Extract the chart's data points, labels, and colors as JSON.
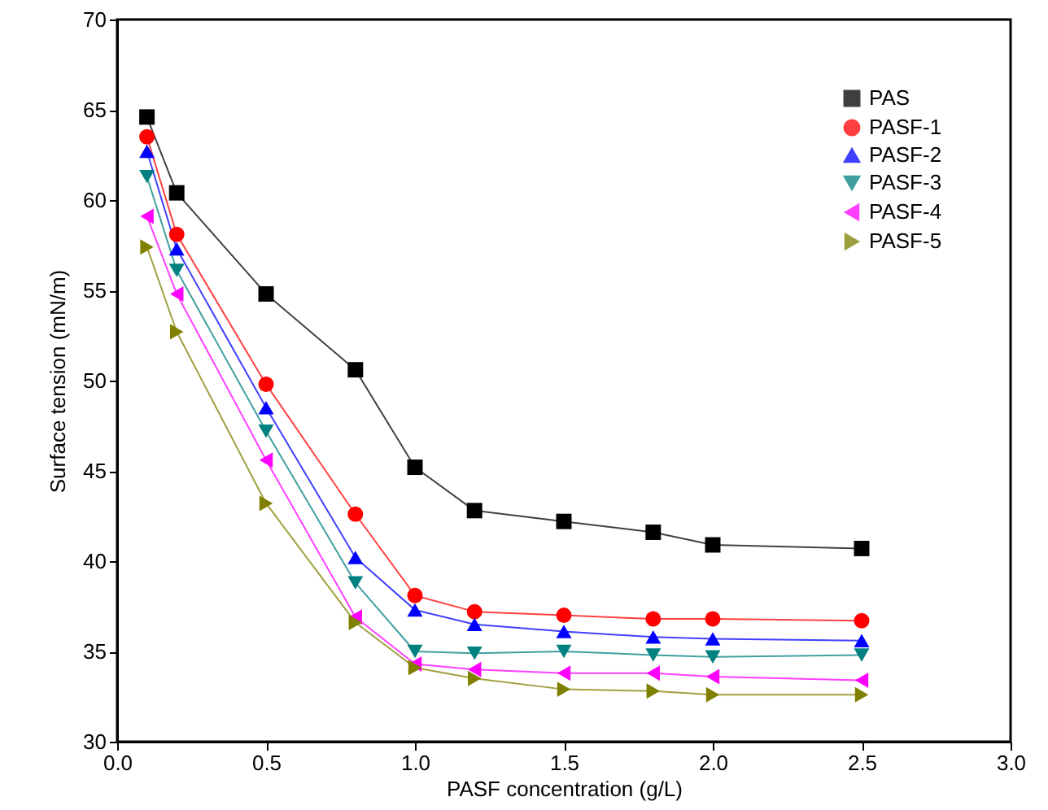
{
  "chart_data": {
    "type": "line",
    "xlabel": "PASF concentration (g/L)",
    "ylabel": "Surface tension (mN/m)",
    "x": [
      0.1,
      0.2,
      0.5,
      0.8,
      1.0,
      1.2,
      1.5,
      1.8,
      2.0,
      2.5
    ],
    "series": [
      {
        "name": "PAS",
        "color": "#000000",
        "marker": "square",
        "values": [
          64.6,
          60.4,
          54.8,
          50.6,
          45.2,
          42.8,
          42.2,
          41.6,
          40.9,
          40.7
        ]
      },
      {
        "name": "PASF-1",
        "color": "#ff0000",
        "marker": "circle",
        "values": [
          63.5,
          58.1,
          49.8,
          42.6,
          38.1,
          37.2,
          37.0,
          36.8,
          36.8,
          36.7
        ]
      },
      {
        "name": "PASF-2",
        "color": "#0000ff",
        "marker": "triangle-up",
        "values": [
          62.7,
          57.3,
          48.5,
          40.2,
          37.3,
          36.5,
          36.1,
          35.8,
          35.7,
          35.6
        ]
      },
      {
        "name": "PASF-3",
        "color": "#008080",
        "marker": "triangle-down",
        "values": [
          61.3,
          56.1,
          47.2,
          38.8,
          35.0,
          34.9,
          35.0,
          34.8,
          34.7,
          34.8
        ]
      },
      {
        "name": "PASF-4",
        "color": "#ff00ff",
        "marker": "triangle-left",
        "values": [
          59.1,
          54.8,
          45.6,
          36.9,
          34.3,
          34.0,
          33.8,
          33.8,
          33.6,
          33.4
        ]
      },
      {
        "name": "PASF-5",
        "color": "#808000",
        "marker": "triangle-right",
        "values": [
          57.4,
          52.7,
          43.2,
          36.6,
          34.1,
          33.5,
          32.9,
          32.8,
          32.6,
          32.6
        ]
      }
    ],
    "xlim": [
      0,
      3.0
    ],
    "xticks": [
      {
        "value": 0,
        "label": "0.0"
      },
      {
        "value": 0.5,
        "label": "0.5"
      },
      {
        "value": 1.0,
        "label": "1.0"
      },
      {
        "value": 1.5,
        "label": "1.5"
      },
      {
        "value": 2.0,
        "label": "2.0"
      },
      {
        "value": 2.5,
        "label": "2.5"
      },
      {
        "value": 3.0,
        "label": "3.0"
      }
    ],
    "ylim": [
      30,
      70
    ],
    "yticks": [
      30,
      35,
      40,
      45,
      50,
      55,
      60,
      65,
      70
    ],
    "grid": false,
    "legend": "top right",
    "line_style": "solid"
  }
}
